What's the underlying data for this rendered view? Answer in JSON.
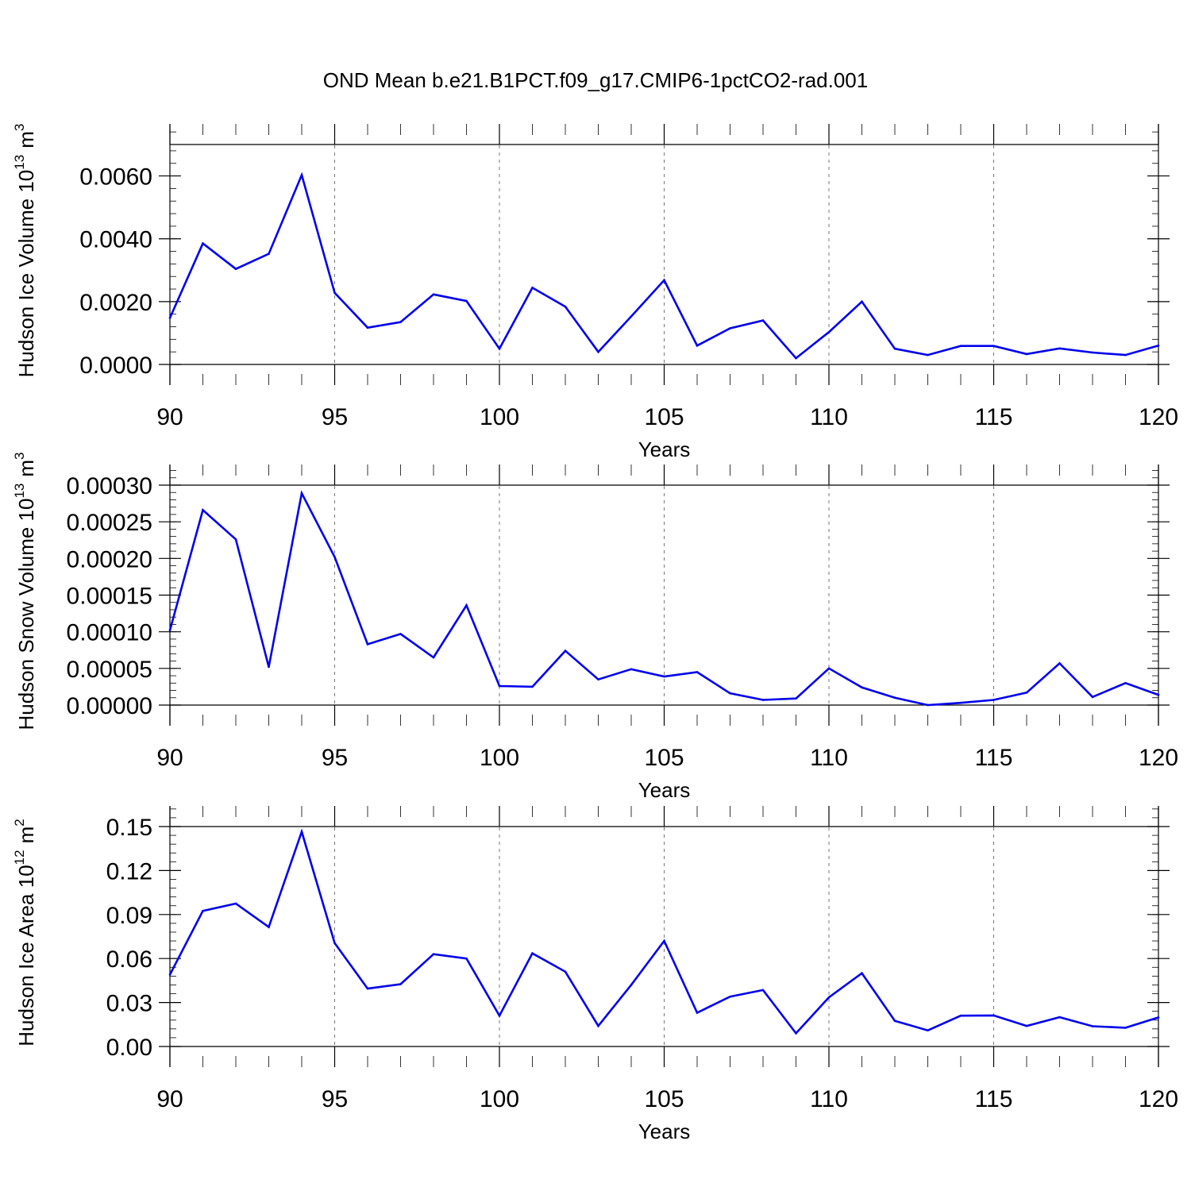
{
  "figure_title": "OND Mean b.e21.B1PCT.f09_g17.CMIP6-1pctCO2-rad.001",
  "line_color": "#0000ee",
  "chart_data": [
    {
      "type": "line",
      "name": "ice-volume",
      "ylabel": "Hudson Ice Volume 10",
      "ylabel_exp": "13",
      "ylabel_unit": "m",
      "ylabel_unit_exp": "3",
      "xlabel": "Years",
      "xlim": [
        90,
        120
      ],
      "ylim": [
        0,
        0.007
      ],
      "xticks": [
        90,
        95,
        100,
        105,
        110,
        115,
        120
      ],
      "xtick_labels": [
        "90",
        "95",
        "100",
        "105",
        "110",
        "115",
        "120"
      ],
      "yticks": [
        0,
        0.002,
        0.004,
        0.006
      ],
      "ytick_labels": [
        "0.0000",
        "0.0020",
        "0.0040",
        "0.0060"
      ],
      "yminor_step": 0.0004,
      "x": [
        90,
        91,
        92,
        93,
        94,
        95,
        96,
        97,
        98,
        99,
        100,
        101,
        102,
        103,
        104,
        105,
        106,
        107,
        108,
        109,
        110,
        111,
        112,
        113,
        114,
        115,
        116,
        117,
        118,
        119,
        120
      ],
      "values": [
        0.00148,
        0.00385,
        0.00304,
        0.00352,
        0.00603,
        0.00228,
        0.00117,
        0.00135,
        0.00223,
        0.00202,
        0.0005,
        0.00244,
        0.00184,
        0.0004,
        0.00153,
        0.00268,
        0.0006,
        0.00115,
        0.0014,
        0.0002,
        0.00103,
        0.002,
        0.0005,
        0.0003,
        0.00059,
        0.00059,
        0.00033,
        0.00051,
        0.00038,
        0.0003,
        0.0006
      ]
    },
    {
      "type": "line",
      "name": "snow-volume",
      "ylabel": "Hudson Snow Volume 10",
      "ylabel_exp": "13",
      "ylabel_unit": "m",
      "ylabel_unit_exp": "3",
      "xlabel": "Years",
      "xlim": [
        90,
        120
      ],
      "ylim": [
        0,
        0.0003
      ],
      "xticks": [
        90,
        95,
        100,
        105,
        110,
        115,
        120
      ],
      "xtick_labels": [
        "90",
        "95",
        "100",
        "105",
        "110",
        "115",
        "120"
      ],
      "yticks": [
        0,
        5e-05,
        0.0001,
        0.00015,
        0.0002,
        0.00025,
        0.0003
      ],
      "ytick_labels": [
        "0.00000",
        "0.00005",
        "0.00010",
        "0.00015",
        "0.00020",
        "0.00025",
        "0.00030"
      ],
      "yminor_step": 1e-05,
      "x": [
        90,
        91,
        92,
        93,
        94,
        95,
        96,
        97,
        98,
        99,
        100,
        101,
        102,
        103,
        104,
        105,
        106,
        107,
        108,
        109,
        110,
        111,
        112,
        113,
        114,
        115,
        116,
        117,
        118,
        119,
        120
      ],
      "values": [
        0.000102,
        0.000266,
        0.000226,
        5.2e-05,
        0.000289,
        0.000202,
        8.3e-05,
        9.7e-05,
        6.5e-05,
        0.000136,
        2.6e-05,
        2.5e-05,
        7.4e-05,
        3.5e-05,
        4.9e-05,
        3.9e-05,
        4.5e-05,
        1.6e-05,
        7e-06,
        9e-06,
        5e-05,
        2.4e-05,
        1e-05,
        0.0,
        3e-06,
        7e-06,
        1.7e-05,
        5.7e-05,
        1.1e-05,
        3e-05,
        1.4e-05
      ]
    },
    {
      "type": "line",
      "name": "ice-area",
      "ylabel": "Hudson Ice Area 10",
      "ylabel_exp": "12",
      "ylabel_unit": "m",
      "ylabel_unit_exp": "2",
      "xlabel": "Years",
      "xlim": [
        90,
        120
      ],
      "ylim": [
        0,
        0.15
      ],
      "xticks": [
        90,
        95,
        100,
        105,
        110,
        115,
        120
      ],
      "xtick_labels": [
        "90",
        "95",
        "100",
        "105",
        "110",
        "115",
        "120"
      ],
      "yticks": [
        0,
        0.03,
        0.06,
        0.09,
        0.12,
        0.15
      ],
      "ytick_labels": [
        "0.00",
        "0.03",
        "0.06",
        "0.09",
        "0.12",
        "0.15"
      ],
      "yminor_step": 0.006,
      "x": [
        90,
        91,
        92,
        93,
        94,
        95,
        96,
        97,
        98,
        99,
        100,
        101,
        102,
        103,
        104,
        105,
        106,
        107,
        108,
        109,
        110,
        111,
        112,
        113,
        114,
        115,
        116,
        117,
        118,
        119,
        120
      ],
      "values": [
        0.049,
        0.0925,
        0.0975,
        0.0815,
        0.1465,
        0.0705,
        0.0395,
        0.0425,
        0.063,
        0.06,
        0.021,
        0.0635,
        0.051,
        0.014,
        0.042,
        0.072,
        0.023,
        0.034,
        0.0385,
        0.009,
        0.0335,
        0.05,
        0.0175,
        0.011,
        0.021,
        0.0212,
        0.014,
        0.02,
        0.0138,
        0.0128,
        0.0198
      ]
    }
  ]
}
